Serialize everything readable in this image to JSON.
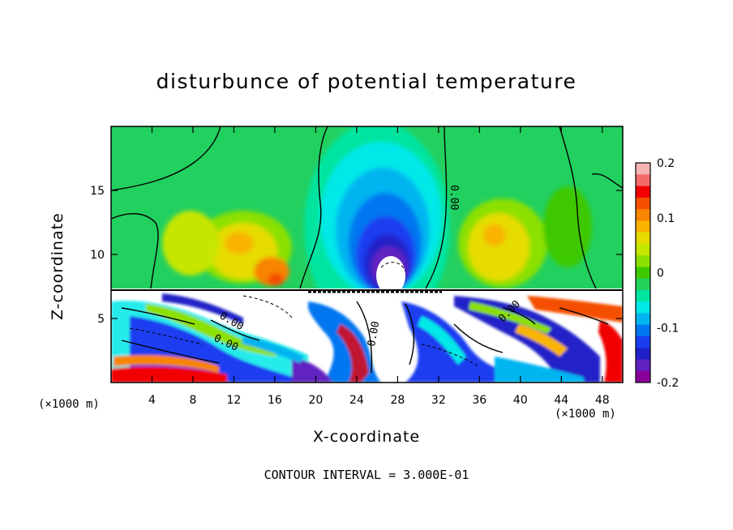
{
  "title": "disturbunce of potential temperature",
  "contour_note": "CONTOUR INTERVAL = 3.000E-01",
  "x_unit_left": "(×1000 m)",
  "x_unit_right": "(×1000 m)",
  "chart_data": {
    "type": "heatmap",
    "title": "disturbunce of potential temperature",
    "xlabel": "X-coordinate",
    "ylabel": "Z-coordinate",
    "x_unit": "(×1000 m)",
    "xlim": [
      0,
      50
    ],
    "ylim": [
      0,
      20
    ],
    "x_ticks": [
      4,
      8,
      12,
      16,
      20,
      24,
      28,
      32,
      36,
      40,
      44,
      48
    ],
    "y_ticks": [
      5,
      10,
      15
    ],
    "colorbar": {
      "range": [
        -0.2,
        0.2
      ],
      "tick_labels": [
        "0.2",
        "0.1",
        "0",
        "-0.1",
        "-0.2"
      ],
      "tick_values": [
        0.2,
        0.1,
        0,
        -0.1,
        -0.2
      ],
      "colors": [
        "#f6b3b3",
        "#f46a6a",
        "#f00000",
        "#f45000",
        "#f88400",
        "#f8b400",
        "#e6dc00",
        "#c6e600",
        "#8ce000",
        "#3ec800",
        "#22d25a",
        "#00e4a0",
        "#00e8e8",
        "#00b4f0",
        "#0076f0",
        "#1a3ef0",
        "#2020c8",
        "#6020c0",
        "#880098"
      ]
    },
    "contour_labels": [
      "0.00",
      "0.00",
      "0.00",
      "0.00",
      "0.00"
    ],
    "contour_interval": "3.000E-01"
  }
}
